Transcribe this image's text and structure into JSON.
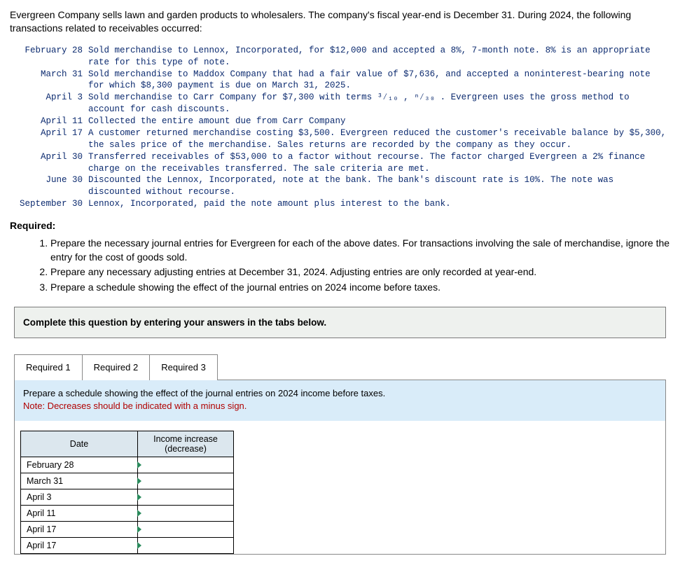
{
  "intro": "Evergreen Company sells lawn and garden products to wholesalers. The company's fiscal year-end is December 31. During 2024, the following transactions related to receivables occurred:",
  "transactions": [
    {
      "date": "February 28",
      "text": "Sold merchandise to Lennox, Incorporated, for $12,000 and accepted a 8%, 7-month note. 8% is an appropriate rate for this type of note."
    },
    {
      "date": "March 31",
      "text": "Sold merchandise to Maddox Company that had a fair value of $7,636, and accepted a noninterest-bearing note for which $8,300 payment is due on March 31, 2025."
    },
    {
      "date": "April 3",
      "text": "Sold merchandise to Carr Company for $7,300 with terms ³⁄₁₀ , ⁿ⁄₃₀ . Evergreen uses the gross method to account for cash discounts."
    },
    {
      "date": "April 11",
      "text": "Collected the entire amount due from Carr Company"
    },
    {
      "date": "April 17",
      "text": "A customer returned merchandise costing $3,500. Evergreen reduced the customer's receivable balance by $5,300, the sales price of the merchandise. Sales returns are recorded by the company as they occur."
    },
    {
      "date": "April 30",
      "text": "Transferred receivables of $53,000 to a factor without recourse. The factor charged Evergreen a 2% finance charge on the receivables transferred. The sale criteria are met."
    },
    {
      "date": "June 30",
      "text": "Discounted the Lennox, Incorporated, note at the bank. The bank's discount rate is 10%. The note was discounted without recourse."
    },
    {
      "date": "September 30",
      "text": "Lennox, Incorporated, paid the note amount plus interest to the bank."
    }
  ],
  "required_heading": "Required:",
  "requirements": [
    "Prepare the necessary journal entries for Evergreen for each of the above dates. For transactions involving the sale of merchandise, ignore the entry for the cost of goods sold.",
    "Prepare any necessary adjusting entries at December 31, 2024. Adjusting entries are only recorded at year-end.",
    "Prepare a schedule showing the effect of the journal entries on 2024 income before taxes."
  ],
  "instruction_bar": "Complete this question by entering your answers in the tabs below.",
  "tabs": [
    "Required 1",
    "Required 2",
    "Required 3"
  ],
  "active_tab_index": 2,
  "panel_note_line1": "Prepare a schedule showing the effect of the journal entries on 2024 income before taxes.",
  "panel_note_line2": "Note: Decreases should be indicated with a minus sign.",
  "schedule": {
    "columns": [
      "Date",
      "Income increase (decrease)"
    ],
    "rows": [
      {
        "date": "February 28",
        "value": ""
      },
      {
        "date": "March 31",
        "value": ""
      },
      {
        "date": "April 3",
        "value": ""
      },
      {
        "date": "April 11",
        "value": ""
      },
      {
        "date": "April 17",
        "value": ""
      },
      {
        "date": "April 17",
        "value": ""
      }
    ],
    "header_bg": "#dce7ee",
    "marker_color": "#2a8a5c"
  }
}
